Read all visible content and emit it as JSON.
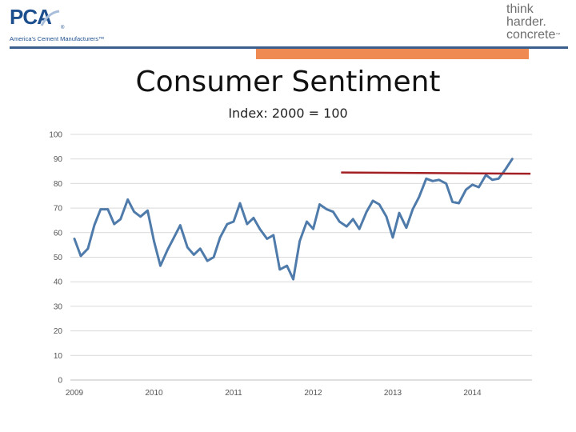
{
  "header": {
    "pca_mark": "PCA",
    "pca_reg": "®",
    "pca_tagline": "America's Cement Manufacturers™",
    "think_lines": [
      "think",
      "harder.",
      "concrete"
    ],
    "think_tm": "™",
    "rule_color": "#3a5f8d",
    "accent_color": "#ee8a52"
  },
  "chart_data": {
    "type": "line",
    "title": "Consumer Sentiment",
    "subtitle": "Index: 2000 = 100",
    "xlabel": "",
    "ylabel": "",
    "ylim": [
      0,
      100
    ],
    "yticks": [
      "0",
      "10",
      "20",
      "30",
      "40",
      "50",
      "60",
      "70",
      "80",
      "90",
      "100"
    ],
    "xlim": [
      2009,
      2014.5
    ],
    "xticks": [
      {
        "value": 2009,
        "label": "2009"
      },
      {
        "value": 2010,
        "label": "2010"
      },
      {
        "value": 2011,
        "label": "2011"
      },
      {
        "value": 2012,
        "label": "2012"
      },
      {
        "value": 2013,
        "label": "2013"
      },
      {
        "value": 2014,
        "label": "2014"
      }
    ],
    "grid": true,
    "series": [
      {
        "color": "#4f7bab",
        "x": [
          2009.0,
          2009.08,
          2009.17,
          2009.25,
          2009.33,
          2009.42,
          2009.5,
          2009.58,
          2009.67,
          2009.75,
          2009.83,
          2009.92,
          2010.0,
          2010.08,
          2010.17,
          2010.25,
          2010.33,
          2010.42,
          2010.5,
          2010.58,
          2010.67,
          2010.75,
          2010.83,
          2010.92,
          2011.0,
          2011.08,
          2011.17,
          2011.25,
          2011.33,
          2011.42,
          2011.5,
          2011.58,
          2011.67,
          2011.75,
          2011.83,
          2011.92,
          2012.0,
          2012.08,
          2012.17,
          2012.25,
          2012.33,
          2012.42,
          2012.5,
          2012.58,
          2012.67,
          2012.75,
          2012.83,
          2012.92,
          2013.0,
          2013.08,
          2013.17,
          2013.25,
          2013.33,
          2013.42,
          2013.5,
          2013.58,
          2013.67,
          2013.75,
          2013.83,
          2013.92,
          2014.0,
          2014.08,
          2014.17,
          2014.25,
          2014.33,
          2014.42,
          2014.5
        ],
        "y": [
          57.5,
          50.5,
          53.5,
          63.0,
          69.5,
          69.5,
          63.5,
          65.5,
          73.5,
          68.5,
          66.5,
          69.0,
          56.5,
          46.5,
          53.0,
          58.0,
          63.0,
          54.0,
          51.0,
          53.5,
          48.5,
          50.0,
          58.0,
          63.5,
          64.5,
          72.0,
          63.5,
          66.0,
          61.5,
          57.5,
          59.0,
          45.0,
          46.5,
          41.0,
          56.5,
          64.5,
          61.5,
          71.5,
          69.5,
          68.5,
          64.5,
          62.5,
          65.5,
          61.5,
          68.5,
          73.0,
          71.5,
          66.5,
          58.0,
          68.0,
          62.0,
          69.5,
          74.5,
          82.0,
          81.0,
          81.5,
          80.0,
          72.5,
          72.0,
          77.5,
          79.5,
          78.5,
          83.5,
          81.5,
          82.0,
          86.0,
          90.0
        ]
      }
    ],
    "reference_lines": [
      {
        "color": "#a21f24",
        "x": [
          2012.35,
          2014.73
        ],
        "y": [
          84.5,
          84.0
        ]
      }
    ]
  }
}
